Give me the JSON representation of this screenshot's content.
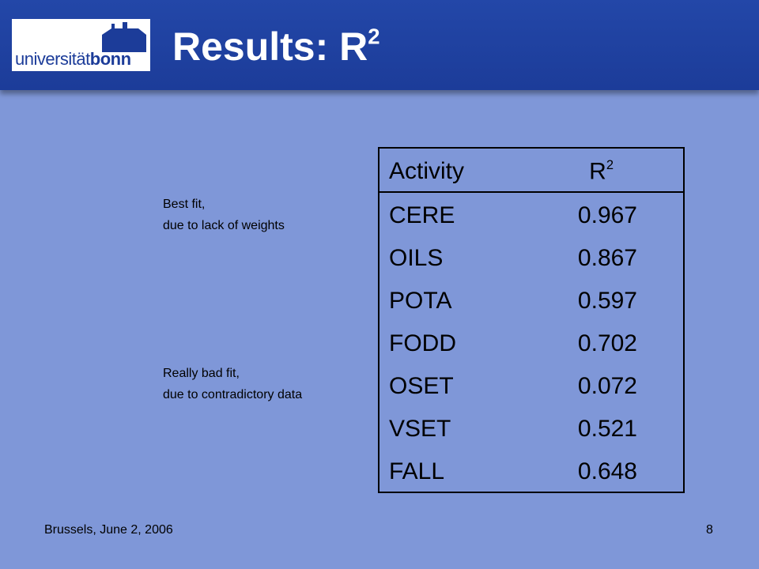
{
  "header": {
    "logo": {
      "part1": "universität",
      "part2": "bonn"
    },
    "title": {
      "text": "Results: R",
      "superscript": "2"
    }
  },
  "annotations": [
    {
      "lines": [
        "Best fit,",
        "due to lack of weights"
      ]
    },
    {
      "lines": [
        "Really bad fit,",
        "due to contradictory data"
      ]
    }
  ],
  "table": {
    "header": [
      {
        "text": "Activity"
      },
      {
        "text": "R",
        "superscript": "2"
      }
    ],
    "rows": [
      [
        "CERE",
        "0.967"
      ],
      [
        "OILS",
        "0.867"
      ],
      [
        "POTA",
        "0.597"
      ],
      [
        "FODD",
        "0.702"
      ],
      [
        "OSET",
        "0.072"
      ],
      [
        "VSET",
        "0.521"
      ],
      [
        "FALL",
        "0.648"
      ]
    ]
  },
  "footer": {
    "left": "Brussels, June 2, 2006",
    "page": "8"
  }
}
